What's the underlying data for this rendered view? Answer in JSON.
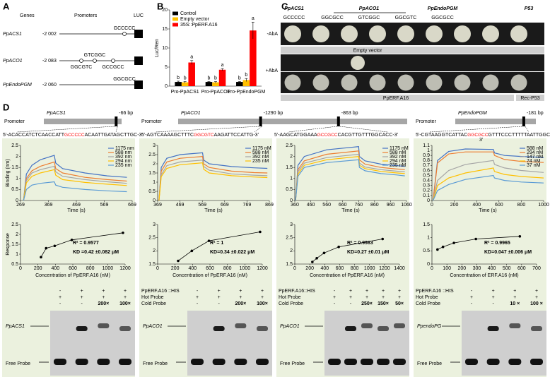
{
  "panel_a": {
    "label": "A",
    "headers": [
      "Genes",
      "Promoters",
      "LUC"
    ],
    "rows": [
      {
        "gene": "PpACS1",
        "position": "-2 002",
        "motifs": [
          {
            "text": "GCCCCC",
            "color": "#ff0000"
          }
        ]
      },
      {
        "gene": "PpACO1",
        "position": "-2 083",
        "motifs": [
          {
            "text": "GTCGGC",
            "color": "#000000"
          },
          {
            "text": "GGCGTC",
            "color": "#ff0000"
          },
          {
            "text": "GCCGCC",
            "color": "#ff0000"
          }
        ]
      },
      {
        "gene": "PpEndoPGM",
        "position": "-2 060",
        "motifs": [
          {
            "text": "GGCGCC",
            "color": "#ff0000"
          }
        ]
      }
    ]
  },
  "panel_b": {
    "label": "B"
  },
  "panel_c": {
    "label": "C",
    "genes": [
      "PpACS1",
      "PpACO1",
      "PpEndoPGM",
      "P53"
    ],
    "motifs": [
      {
        "text": "GCCCCC",
        "color": "#ff0000"
      },
      {
        "text": "GGCGCC",
        "color": "#ff0000"
      },
      {
        "text": "GTCGGC",
        "color": "#000000"
      },
      {
        "text": "GGCGTC",
        "color": "#ff0000"
      },
      {
        "text": "GGCGCC",
        "color": "#ff0000"
      }
    ],
    "rows": [
      "-AbA",
      "+AbA"
    ],
    "empty_vector": "Empty vector",
    "effector": "PpERF.A16",
    "control": "Rec-P53"
  },
  "panel_d": {
    "label": "D",
    "columns": [
      {
        "promoter_label": "Promoter",
        "gene": "PpACS1",
        "sites": [
          "-66 bp"
        ],
        "sequences": [
          {
            "before": "5'-ACACCATCTCAACCATT",
            "motif": "GCCCCC",
            "after": "ACAATTGATAGCTTGC-3'"
          }
        ],
        "emsa": {
          "rows": [
            {
              "cells": [
                "-",
                "+",
                "+",
                "+"
              ]
            },
            {
              "cells": [
                "+",
                "+",
                "+",
                "+"
              ]
            },
            {
              "cells": [
                "-",
                "-",
                "200×",
                "100×"
              ]
            }
          ],
          "band_label": "PpACS1",
          "free_label": "Free Probe"
        }
      },
      {
        "promoter_label": "Promoter",
        "gene": "PpACO1",
        "sites": [
          "-1290 bp",
          "-863 bp"
        ],
        "sequences": [
          {
            "before": "5'-AGTCAAAAGCTTTC",
            "motif": "GGCGTC",
            "after": "AAGATTCCATTG-3'"
          },
          {
            "before": "5'-AAGCATGGAAA",
            "motif": "GCCGCC",
            "after": "CACGTTGTTTGGCACC-3'"
          }
        ],
        "emsa": {
          "rows": [
            {
              "label": "PpERF.A16 ::HIS",
              "cells": [
                "-",
                "+",
                "+",
                "+"
              ]
            },
            {
              "label": "Hot Probe",
              "cells": [
                "+",
                "+",
                "+",
                "+"
              ]
            },
            {
              "label": "Cold Probe",
              "cells": [
                "-",
                "-",
                "200×",
                "100×"
              ]
            }
          ],
          "band_label": "PpACO1",
          "free_label": "Free Probe"
        }
      },
      {
        "emsa": {
          "rows": [
            {
              "label": "PpERF.A16::HIS",
              "cells": [
                "-",
                "+",
                "+",
                "+",
                "+"
              ]
            },
            {
              "label": "Hot Probe",
              "cells": [
                "+",
                "+",
                "+",
                "+",
                "+"
              ]
            },
            {
              "label": "Cold Probe",
              "cells": [
                "-",
                "-",
                "250×",
                "150×",
                "50×"
              ]
            }
          ],
          "band_label": "PpACO1",
          "free_label": "Free Probe"
        }
      },
      {
        "promoter_label": "Promoter",
        "gene": "PpEndoPGM",
        "sites": [
          "-181 bp"
        ],
        "sequences": [
          {
            "before": "5'-CGTAAGGTCATTAC",
            "motif": "GGCGCC",
            "after": "GTTTCCCTTTTTAATTGGCG-",
            "end": "3'"
          }
        ],
        "emsa": {
          "rows": [
            {
              "label": "PpERF.A16 ::HIS",
              "cells": [
                "-",
                "+",
                "+",
                "+"
              ]
            },
            {
              "label": "Hot Probe",
              "cells": [
                "+",
                "+",
                "+",
                "+"
              ]
            },
            {
              "label": "Cold Probe",
              "cells": [
                "-",
                "-",
                "10 ×",
                "100 ×"
              ]
            }
          ],
          "band_label": "PpendoPG",
          "free_label": "Free Probe"
        }
      }
    ]
  },
  "chart_data": [
    {
      "type": "bar",
      "ylabel": "Luc/Ren",
      "categories": [
        "Pro-PpACS1",
        "Pro-PpACO1",
        "Pro-PpEndoPGM"
      ],
      "ylim": [
        0,
        20
      ],
      "yticks": [
        0,
        5,
        10,
        15,
        20
      ],
      "series": [
        {
          "name": "Control",
          "color": "#000000",
          "values": [
            1.1,
            1.1,
            1.1
          ],
          "errors": [
            0.2,
            0.1,
            0.1
          ],
          "letters": [
            "b",
            "b",
            "b"
          ]
        },
        {
          "name": "Empty vector",
          "color": "#ffc000",
          "values": [
            1.0,
            1.0,
            1.6
          ],
          "errors": [
            0.2,
            0.2,
            0.4
          ],
          "letters": [
            "b",
            "b",
            "b"
          ]
        },
        {
          "name": "35S::PpERF.A16",
          "color": "#ff0000",
          "values": [
            6.2,
            4.3,
            14.6
          ],
          "errors": [
            0.5,
            0.3,
            2.2
          ],
          "letters": [
            "a",
            "a",
            "a"
          ]
        }
      ]
    },
    {
      "type": "line",
      "ylabel": "Binding (nm)",
      "xlabel": "Time (s)",
      "xlim": [
        269,
        669
      ],
      "xticks": [
        269,
        369,
        469,
        569,
        669
      ],
      "ylim": [
        0,
        2.5
      ],
      "yticks": [
        0,
        0.5,
        1,
        1.5,
        2,
        2.5
      ],
      "x": [
        280,
        290,
        310,
        340,
        390,
        395,
        420,
        500,
        580,
        650
      ],
      "series": [
        {
          "name": "1175 nm",
          "color": "#4472c4",
          "values": [
            0,
            1.2,
            1.6,
            1.85,
            2.05,
            1.7,
            1.45,
            1.25,
            1.12,
            1.05
          ]
        },
        {
          "name": "588 nm",
          "color": "#ed7d31",
          "values": [
            0,
            1.0,
            1.35,
            1.55,
            1.75,
            1.45,
            1.25,
            1.05,
            0.95,
            0.88
          ]
        },
        {
          "name": "392 nm",
          "color": "#a5a5a5",
          "values": [
            0,
            0.9,
            1.25,
            1.4,
            1.55,
            1.3,
            1.1,
            0.95,
            0.85,
            0.78
          ]
        },
        {
          "name": "294 nm",
          "color": "#ffc000",
          "values": [
            0,
            0.8,
            1.1,
            1.25,
            1.4,
            1.15,
            0.95,
            0.82,
            0.74,
            0.68
          ]
        },
        {
          "name": "235 nm",
          "color": "#5b9bd5",
          "values": [
            0,
            0.5,
            0.7,
            0.78,
            0.85,
            0.7,
            0.6,
            0.5,
            0.44,
            0.4
          ]
        }
      ]
    },
    {
      "type": "line",
      "xlabel": "Time (s)",
      "xlim": [
        369,
        869
      ],
      "xticks": [
        369,
        469,
        569,
        669,
        769,
        869
      ],
      "ylim": [
        0,
        3
      ],
      "yticks": [
        0,
        0.5,
        1,
        1.5,
        2,
        2.5,
        3
      ],
      "x": [
        375,
        385,
        410,
        470,
        570,
        575,
        600,
        700,
        800,
        860
      ],
      "series": [
        {
          "name": "1175 nM",
          "color": "#4472c4",
          "values": [
            0,
            1.8,
            2.3,
            2.5,
            2.6,
            2.2,
            2.0,
            1.85,
            1.78,
            1.75
          ]
        },
        {
          "name": "588 nM",
          "color": "#ed7d31",
          "values": [
            0,
            1.6,
            2.1,
            2.3,
            2.4,
            2.0,
            1.8,
            1.6,
            1.52,
            1.5
          ]
        },
        {
          "name": "392 nM",
          "color": "#a5a5a5",
          "values": [
            0,
            1.4,
            1.9,
            2.1,
            2.2,
            1.85,
            1.65,
            1.45,
            1.38,
            1.35
          ]
        },
        {
          "name": "235 nM",
          "color": "#ffc000",
          "values": [
            0,
            1.3,
            1.75,
            1.95,
            2.05,
            1.7,
            1.5,
            1.35,
            1.28,
            1.25
          ]
        }
      ]
    },
    {
      "type": "line",
      "xlabel": "Time (s)",
      "xlim": [
        360,
        1060
      ],
      "xticks": [
        360,
        460,
        560,
        660,
        760,
        860,
        960,
        1060
      ],
      "ylim": [
        0,
        2.5
      ],
      "yticks": [
        0,
        0.5,
        1,
        1.5,
        2,
        2.5
      ],
      "x": [
        365,
        380,
        420,
        560,
        760,
        765,
        800,
        900,
        1000,
        1050
      ],
      "series": [
        {
          "name": "1175 nM",
          "color": "#4472c4",
          "values": [
            0,
            1.6,
            2.0,
            2.3,
            2.45,
            2.0,
            1.8,
            1.65,
            1.58,
            1.55
          ]
        },
        {
          "name": "588 nM",
          "color": "#ed7d31",
          "values": [
            0,
            1.4,
            1.8,
            2.1,
            2.25,
            1.85,
            1.65,
            1.5,
            1.43,
            1.4
          ]
        },
        {
          "name": "392 nM",
          "color": "#a5a5a5",
          "values": [
            0,
            1.3,
            1.7,
            1.95,
            2.1,
            1.7,
            1.52,
            1.4,
            1.33,
            1.3
          ]
        },
        {
          "name": "294 nM",
          "color": "#ffc000",
          "values": [
            0,
            1.2,
            1.6,
            1.85,
            2.0,
            1.6,
            1.45,
            1.32,
            1.25,
            1.22
          ]
        },
        {
          "name": "235 nM",
          "color": "#5b9bd5",
          "values": [
            0,
            1.1,
            1.5,
            1.72,
            1.85,
            1.5,
            1.35,
            1.22,
            1.16,
            1.12
          ]
        }
      ]
    },
    {
      "type": "line",
      "xlabel": "Time (s)",
      "xlim": [
        0,
        1000
      ],
      "xticks": [
        0,
        200,
        400,
        600,
        800,
        1000
      ],
      "ylim": [
        0,
        1.1
      ],
      "yticks": [
        0,
        0.1,
        0.2,
        0.3,
        0.4,
        0.5,
        0.6,
        0.7,
        0.8,
        0.9,
        1,
        1.1
      ],
      "x": [
        10,
        50,
        150,
        300,
        550,
        560,
        650,
        800,
        1000
      ],
      "series": [
        {
          "name": "588 nM",
          "color": "#4472c4",
          "values": [
            0,
            0.8,
            0.98,
            1.03,
            1.02,
            0.95,
            0.9,
            0.88,
            0.86
          ]
        },
        {
          "name": "294 nM",
          "color": "#ed7d31",
          "values": [
            0,
            0.75,
            0.93,
            0.97,
            0.97,
            0.9,
            0.82,
            0.78,
            0.76
          ]
        },
        {
          "name": "147 nM",
          "color": "#a5a5a5",
          "values": [
            0,
            0.4,
            0.6,
            0.72,
            0.8,
            0.72,
            0.65,
            0.6,
            0.56
          ]
        },
        {
          "name": "74  nM",
          "color": "#ffc000",
          "values": [
            0,
            0.3,
            0.45,
            0.55,
            0.65,
            0.58,
            0.52,
            0.48,
            0.45
          ]
        },
        {
          "name": "37  nM",
          "color": "#5b9bd5",
          "values": [
            0,
            0.2,
            0.32,
            0.42,
            0.5,
            0.45,
            0.4,
            0.37,
            0.35
          ]
        }
      ]
    },
    {
      "type": "scatter",
      "ylabel": "Response",
      "xlabel": "Concentration of PpERF.A16 (nM)",
      "annotations": [
        "R² = 0.9577",
        "KD =0.42 ±0.082 μM"
      ],
      "xlim": [
        0,
        1200
      ],
      "xticks": [
        0,
        200,
        400,
        600,
        800,
        1000,
        1200
      ],
      "ylim": [
        0.5,
        2.5
      ],
      "yticks": [
        0.5,
        1,
        1.5,
        2,
        2.5
      ],
      "x": [
        235,
        294,
        392,
        588,
        1175
      ],
      "values": [
        0.85,
        1.3,
        1.42,
        1.72,
        2.08
      ]
    },
    {
      "type": "scatter",
      "xlabel": "Concentration of PpERF.A16 (nM)",
      "annotations": [
        "R² = 1",
        "KD=0.34 ±0.022 μM"
      ],
      "xlim": [
        0,
        1200
      ],
      "xticks": [
        0,
        200,
        400,
        600,
        800,
        1000,
        1200
      ],
      "ylim": [
        1.5,
        3
      ],
      "yticks": [
        1.5,
        2,
        2.5,
        3
      ],
      "x": [
        235,
        392,
        588,
        1175
      ],
      "values": [
        1.62,
        2.0,
        2.38,
        2.72
      ]
    },
    {
      "type": "scatter",
      "xlabel": "Concentration of PpERF.A16 (nM)",
      "annotations": [
        "R² = 0.9983",
        "KD=0.27 ±0.01 μM"
      ],
      "xlim": [
        0,
        1400
      ],
      "xticks": [
        0,
        200,
        400,
        600,
        800,
        1000,
        1200,
        1400
      ],
      "ylim": [
        1.5,
        3
      ],
      "yticks": [
        1.5,
        2,
        2.5,
        3
      ],
      "x": [
        235,
        294,
        392,
        588,
        1175
      ],
      "values": [
        1.58,
        1.72,
        1.92,
        2.15,
        2.45
      ]
    },
    {
      "type": "scatter",
      "xlabel": "Concentration of ERF.A16 (nM)",
      "annotations": [
        "R² = 0.9965",
        "KD=0.047 ±0.006 μM"
      ],
      "xlim": [
        0,
        700
      ],
      "xticks": [
        0,
        100,
        200,
        300,
        400,
        500,
        600,
        700
      ],
      "ylim": [
        0,
        1.5
      ],
      "yticks": [
        0,
        0.5,
        1,
        1.5
      ],
      "x": [
        37,
        74,
        147,
        294,
        588
      ],
      "values": [
        0.55,
        0.65,
        0.8,
        0.95,
        1.05
      ]
    }
  ]
}
